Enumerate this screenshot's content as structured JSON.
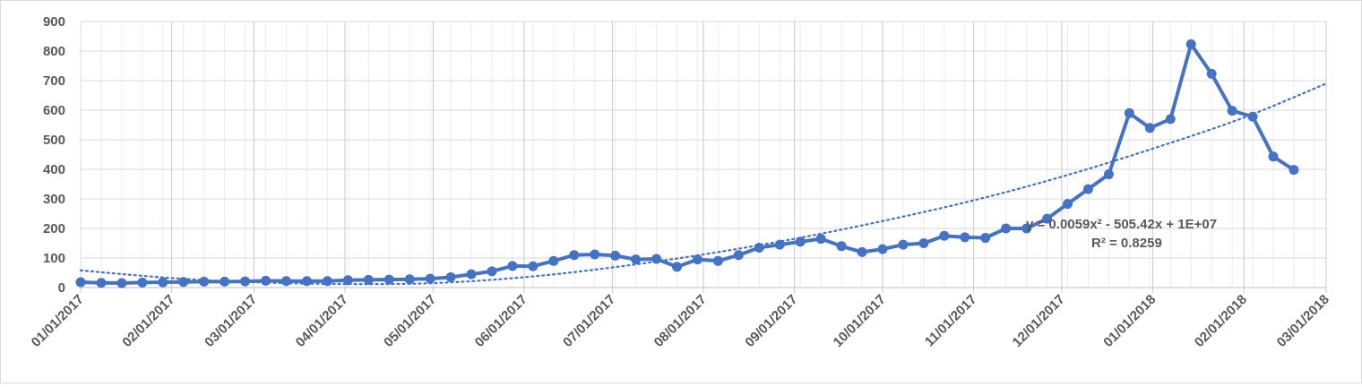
{
  "chart_data": {
    "type": "line",
    "title": "",
    "xlabel": "",
    "ylabel": "",
    "x_axis": {
      "type": "date",
      "min": "2017-01-01",
      "max": "2018-03-01",
      "tick_labels": [
        "01/01/2017",
        "02/01/2017",
        "03/01/2017",
        "04/01/2017",
        "05/01/2017",
        "06/01/2017",
        "07/01/2017",
        "08/01/2017",
        "09/01/2017",
        "10/01/2017",
        "11/01/2017",
        "12/01/2017",
        "01/01/2018",
        "02/01/2018",
        "03/01/2018"
      ],
      "tick_dates": [
        "2017-01-01",
        "2017-02-01",
        "2017-03-01",
        "2017-04-01",
        "2017-05-01",
        "2017-06-01",
        "2017-07-01",
        "2017-08-01",
        "2017-09-01",
        "2017-10-01",
        "2017-11-01",
        "2017-12-01",
        "2018-01-01",
        "2018-02-01",
        "2018-03-01"
      ],
      "minor_gridlines_weekly": true
    },
    "y_axis": {
      "min": 0,
      "max": 900,
      "step": 100,
      "tick_labels": [
        "0",
        "100",
        "200",
        "300",
        "400",
        "500",
        "600",
        "700",
        "800",
        "900"
      ]
    },
    "grid": true,
    "legend": "none",
    "series": [
      {
        "color": "#4472c4",
        "marker": "circle",
        "points": [
          {
            "x": "2017-01-01",
            "y": 18
          },
          {
            "x": "2017-01-08",
            "y": 16
          },
          {
            "x": "2017-01-15",
            "y": 15
          },
          {
            "x": "2017-01-22",
            "y": 17
          },
          {
            "x": "2017-01-29",
            "y": 18
          },
          {
            "x": "2017-02-05",
            "y": 19
          },
          {
            "x": "2017-02-12",
            "y": 20
          },
          {
            "x": "2017-02-19",
            "y": 20
          },
          {
            "x": "2017-02-26",
            "y": 21
          },
          {
            "x": "2017-03-05",
            "y": 23
          },
          {
            "x": "2017-03-12",
            "y": 22
          },
          {
            "x": "2017-03-19",
            "y": 22
          },
          {
            "x": "2017-03-26",
            "y": 22
          },
          {
            "x": "2017-04-02",
            "y": 25
          },
          {
            "x": "2017-04-09",
            "y": 26
          },
          {
            "x": "2017-04-16",
            "y": 27
          },
          {
            "x": "2017-04-23",
            "y": 28
          },
          {
            "x": "2017-04-30",
            "y": 30
          },
          {
            "x": "2017-05-07",
            "y": 35
          },
          {
            "x": "2017-05-14",
            "y": 45
          },
          {
            "x": "2017-05-21",
            "y": 55
          },
          {
            "x": "2017-05-28",
            "y": 73
          },
          {
            "x": "2017-06-04",
            "y": 72
          },
          {
            "x": "2017-06-11",
            "y": 90
          },
          {
            "x": "2017-06-18",
            "y": 110
          },
          {
            "x": "2017-06-25",
            "y": 112
          },
          {
            "x": "2017-07-02",
            "y": 108
          },
          {
            "x": "2017-07-09",
            "y": 95
          },
          {
            "x": "2017-07-16",
            "y": 97
          },
          {
            "x": "2017-07-23",
            "y": 70
          },
          {
            "x": "2017-07-30",
            "y": 95
          },
          {
            "x": "2017-08-06",
            "y": 90
          },
          {
            "x": "2017-08-13",
            "y": 110
          },
          {
            "x": "2017-08-20",
            "y": 135
          },
          {
            "x": "2017-08-27",
            "y": 145
          },
          {
            "x": "2017-09-03",
            "y": 155
          },
          {
            "x": "2017-09-10",
            "y": 165
          },
          {
            "x": "2017-09-17",
            "y": 140
          },
          {
            "x": "2017-09-24",
            "y": 120
          },
          {
            "x": "2017-10-01",
            "y": 130
          },
          {
            "x": "2017-10-08",
            "y": 145
          },
          {
            "x": "2017-10-15",
            "y": 150
          },
          {
            "x": "2017-10-22",
            "y": 175
          },
          {
            "x": "2017-10-29",
            "y": 170
          },
          {
            "x": "2017-11-05",
            "y": 168
          },
          {
            "x": "2017-11-12",
            "y": 200
          },
          {
            "x": "2017-11-19",
            "y": 200
          },
          {
            "x": "2017-11-26",
            "y": 233
          },
          {
            "x": "2017-12-03",
            "y": 283
          },
          {
            "x": "2017-12-10",
            "y": 333
          },
          {
            "x": "2017-12-17",
            "y": 383
          },
          {
            "x": "2017-12-24",
            "y": 590
          },
          {
            "x": "2017-12-31",
            "y": 540
          },
          {
            "x": "2018-01-07",
            "y": 570
          },
          {
            "x": "2018-01-14",
            "y": 823
          },
          {
            "x": "2018-01-21",
            "y": 723
          },
          {
            "x": "2018-01-28",
            "y": 598
          },
          {
            "x": "2018-02-04",
            "y": 578
          },
          {
            "x": "2018-02-11",
            "y": 443
          },
          {
            "x": "2018-02-18",
            "y": 398
          }
        ]
      }
    ],
    "trendline": {
      "type": "polynomial",
      "order": 2,
      "style": "dotted",
      "color": "#4472c4",
      "equation": "y = 0.0059x² - 505.42x + 1E+07",
      "r_squared": "R² = 0.8259",
      "points": [
        {
          "x": "2017-01-01",
          "y": 58
        },
        {
          "x": "2017-02-01",
          "y": 32
        },
        {
          "x": "2017-03-01",
          "y": 18
        },
        {
          "x": "2017-04-01",
          "y": 12
        },
        {
          "x": "2017-05-01",
          "y": 15
        },
        {
          "x": "2017-06-01",
          "y": 35
        },
        {
          "x": "2017-07-01",
          "y": 68
        },
        {
          "x": "2017-08-01",
          "y": 112
        },
        {
          "x": "2017-09-01",
          "y": 165
        },
        {
          "x": "2017-10-01",
          "y": 225
        },
        {
          "x": "2017-11-01",
          "y": 295
        },
        {
          "x": "2017-12-01",
          "y": 375
        },
        {
          "x": "2018-01-01",
          "y": 470
        },
        {
          "x": "2018-02-01",
          "y": 575
        },
        {
          "x": "2018-03-01",
          "y": 690
        }
      ]
    }
  }
}
